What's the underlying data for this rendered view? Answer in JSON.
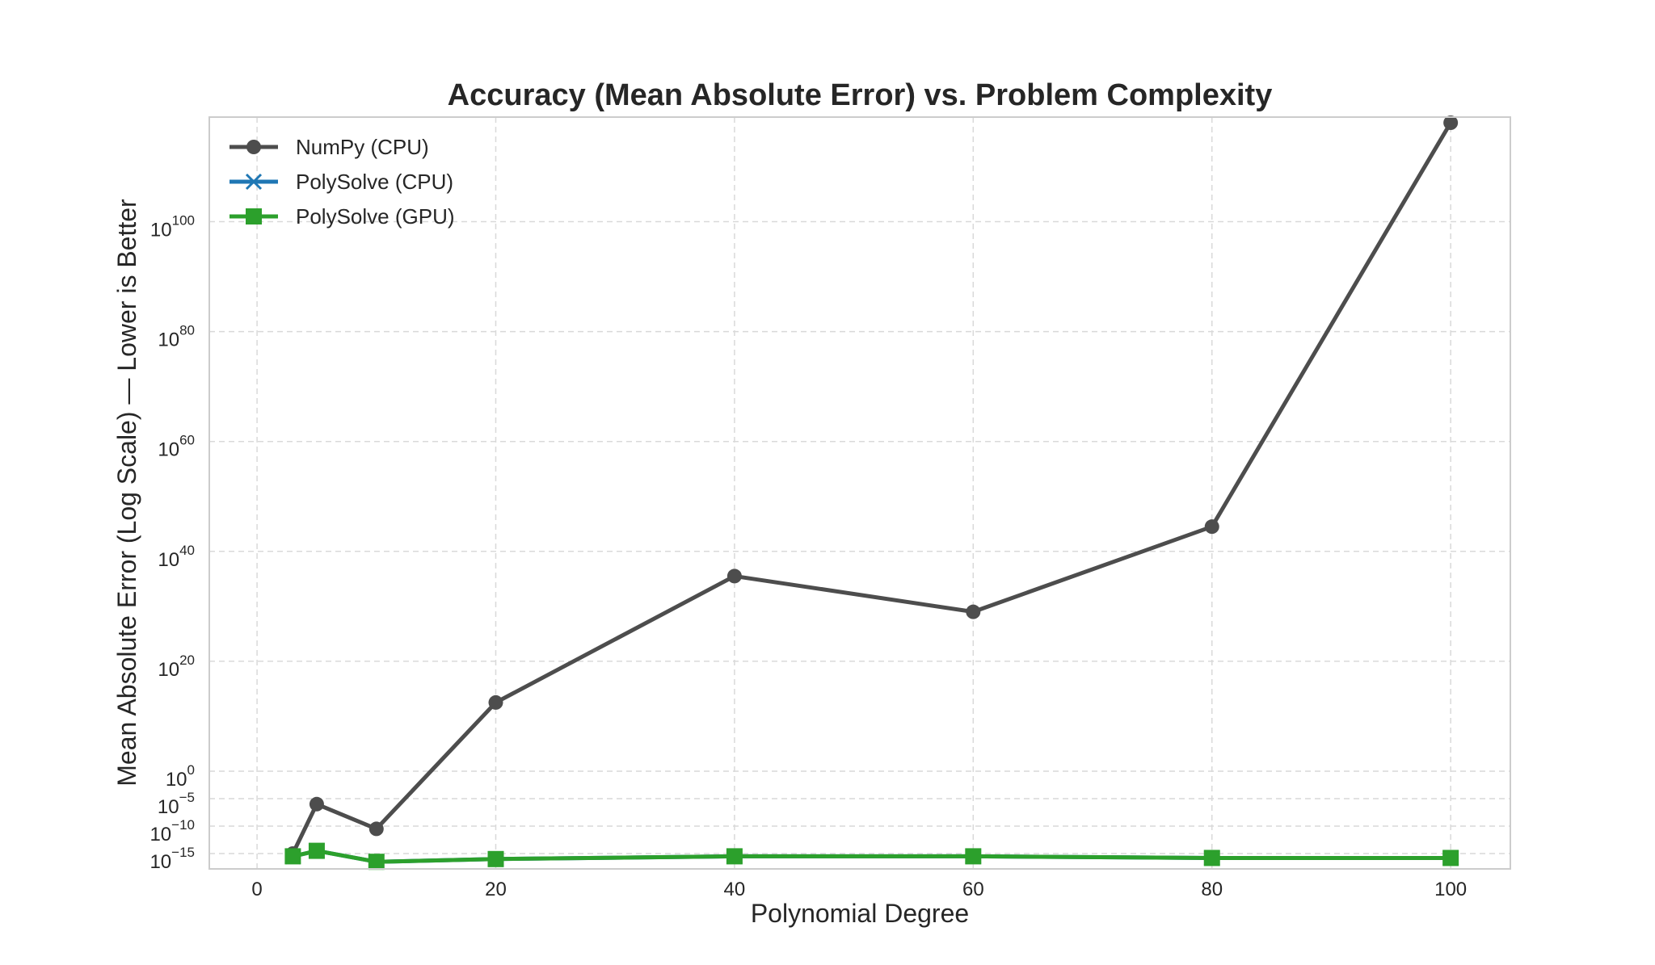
{
  "chart_data": {
    "type": "line",
    "title": "Accuracy (Mean Absolute Error) vs. Problem Complexity",
    "xlabel": "Polynomial Degree",
    "ylabel": "Mean Absolute Error (Log Scale) — Lower is Better",
    "y_scale": "symlog",
    "xlim": [
      -4,
      105
    ],
    "ylim": [
      -17,
      118
    ],
    "x_ticks": [
      0,
      20,
      40,
      60,
      80,
      100
    ],
    "y_ticks": [
      {
        "base": "10",
        "exp": "100",
        "value": 100
      },
      {
        "base": "10",
        "exp": "80",
        "value": 80
      },
      {
        "base": "10",
        "exp": "60",
        "value": 60
      },
      {
        "base": "10",
        "exp": "40",
        "value": 40
      },
      {
        "base": "10",
        "exp": "20",
        "value": 20
      },
      {
        "base": "10",
        "exp": "0",
        "value": 0
      },
      {
        "base": "10",
        "exp": "−5",
        "value": -5
      },
      {
        "base": "10",
        "exp": "−10",
        "value": -10
      },
      {
        "base": "10",
        "exp": "−15",
        "value": -15
      }
    ],
    "grid": true,
    "legend_position": "top-left",
    "series": [
      {
        "name": "NumPy (CPU)",
        "color": "#4d4d4d",
        "marker": "circle",
        "x": [
          3,
          5,
          10,
          20,
          40,
          60,
          80,
          100
        ],
        "log10_y": [
          -15,
          -6,
          -10.5,
          12.5,
          35.5,
          29,
          44.5,
          118
        ]
      },
      {
        "name": "PolySolve (CPU)",
        "color": "#1f77b4",
        "marker": "x",
        "x": [
          3,
          5,
          10,
          20,
          40,
          60,
          80,
          100
        ],
        "log10_y": [
          -15.5,
          -14.5,
          -16.5,
          -16,
          -15.5,
          -15.5,
          -15.8,
          -15.8
        ]
      },
      {
        "name": "PolySolve (GPU)",
        "color": "#2ca02c",
        "marker": "square",
        "x": [
          3,
          5,
          10,
          20,
          40,
          60,
          80,
          100
        ],
        "log10_y": [
          -15.5,
          -14.5,
          -16.5,
          -16,
          -15.5,
          -15.5,
          -15.8,
          -15.8
        ]
      }
    ]
  }
}
